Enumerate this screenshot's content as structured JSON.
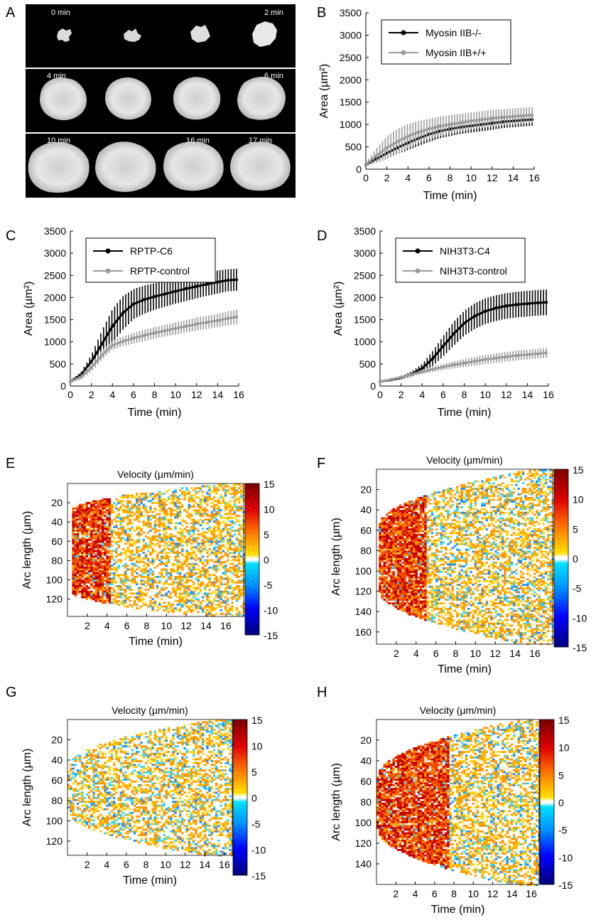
{
  "panels": {
    "A": {
      "letter": "A",
      "time_labels": [
        "0 min",
        "2 min",
        "4 min",
        "6 min",
        "10 min",
        "16 min",
        "17 min"
      ]
    },
    "B": {
      "letter": "B"
    },
    "C": {
      "letter": "C"
    },
    "D": {
      "letter": "D"
    },
    "E": {
      "letter": "E"
    },
    "F": {
      "letter": "F"
    },
    "G": {
      "letter": "G"
    },
    "H": {
      "letter": "H"
    }
  },
  "colors": {
    "black_series": "#000000",
    "gray_series": "#9a9a9a"
  },
  "chart_data": [
    {
      "id": "B",
      "type": "line",
      "xlabel": "Time (min)",
      "ylabel": "Area (µm²)",
      "xlim": [
        0,
        16
      ],
      "ylim": [
        0,
        3500
      ],
      "xticks": [
        "0",
        "2",
        "4",
        "6",
        "8",
        "10",
        "12",
        "14",
        "16"
      ],
      "yticks": [
        "0",
        "500",
        "1000",
        "1500",
        "2000",
        "2500",
        "3000",
        "3500"
      ],
      "legend_position": "top-left",
      "series": [
        {
          "name": "Myosin IIB-/-",
          "color": "black",
          "x": [
            0,
            1,
            2,
            3,
            4,
            5,
            6,
            7,
            8,
            9,
            10,
            11,
            12,
            13,
            14,
            15,
            15.8
          ],
          "y": [
            100,
            230,
            360,
            480,
            590,
            690,
            780,
            850,
            900,
            940,
            970,
            1000,
            1030,
            1060,
            1080,
            1100,
            1110
          ],
          "err": [
            30,
            70,
            110,
            140,
            160,
            170,
            170,
            160,
            160,
            150,
            150,
            150,
            150,
            140,
            140,
            140,
            140
          ]
        },
        {
          "name": "Myosin IIB+/+",
          "color": "gray",
          "x": [
            0,
            1,
            2,
            3,
            4,
            5,
            6,
            7,
            8,
            9,
            10,
            11,
            12,
            13,
            14,
            15,
            15.8
          ],
          "y": [
            110,
            300,
            480,
            620,
            740,
            830,
            900,
            960,
            1000,
            1040,
            1080,
            1110,
            1140,
            1160,
            1180,
            1200,
            1210
          ],
          "err": [
            40,
            160,
            260,
            280,
            270,
            250,
            230,
            220,
            210,
            200,
            190,
            190,
            190,
            180,
            180,
            180,
            180
          ]
        }
      ]
    },
    {
      "id": "C",
      "type": "line",
      "xlabel": "Time (min)",
      "ylabel": "Area (µm²)",
      "xlim": [
        0,
        16
      ],
      "ylim": [
        0,
        3500
      ],
      "xticks": [
        "0",
        "2",
        "4",
        "6",
        "8",
        "10",
        "12",
        "14",
        "16"
      ],
      "yticks": [
        "0",
        "500",
        "1000",
        "1500",
        "2000",
        "2500",
        "3000",
        "3500"
      ],
      "legend_position": "top-left",
      "series": [
        {
          "name": "RPTP-C6",
          "color": "black",
          "x": [
            0,
            1,
            2,
            3,
            4,
            5,
            6,
            7,
            8,
            9,
            10,
            11,
            12,
            13,
            14,
            15,
            15.8
          ],
          "y": [
            100,
            250,
            550,
            950,
            1350,
            1650,
            1850,
            1950,
            2020,
            2080,
            2140,
            2200,
            2250,
            2300,
            2350,
            2390,
            2400
          ],
          "err": [
            30,
            60,
            150,
            300,
            380,
            380,
            340,
            320,
            300,
            290,
            280,
            280,
            270,
            260,
            260,
            250,
            250
          ]
        },
        {
          "name": "RPTP-control",
          "color": "gray",
          "x": [
            0,
            1,
            2,
            3,
            4,
            5,
            6,
            7,
            8,
            9,
            10,
            11,
            12,
            13,
            14,
            15,
            15.8
          ],
          "y": [
            100,
            200,
            420,
            700,
            920,
            1010,
            1080,
            1140,
            1200,
            1250,
            1300,
            1350,
            1400,
            1440,
            1480,
            1530,
            1560
          ],
          "err": [
            30,
            60,
            100,
            110,
            100,
            110,
            120,
            130,
            130,
            130,
            140,
            140,
            150,
            150,
            150,
            160,
            160
          ]
        }
      ]
    },
    {
      "id": "D",
      "type": "line",
      "xlabel": "Time (min)",
      "ylabel": "Area (µm²)",
      "xlim": [
        0,
        16
      ],
      "ylim": [
        0,
        3500
      ],
      "xticks": [
        "0",
        "2",
        "4",
        "6",
        "8",
        "10",
        "12",
        "14",
        "16"
      ],
      "yticks": [
        "0",
        "500",
        "1000",
        "1500",
        "2000",
        "2500",
        "3000",
        "3500"
      ],
      "legend_position": "top-left",
      "series": [
        {
          "name": "NIH3T3-C4",
          "color": "black",
          "x": [
            0,
            1,
            2,
            3,
            4,
            5,
            6,
            7,
            8,
            9,
            10,
            11,
            12,
            13,
            14,
            15,
            15.8
          ],
          "y": [
            100,
            140,
            190,
            270,
            400,
            620,
            900,
            1180,
            1420,
            1580,
            1690,
            1760,
            1810,
            1840,
            1860,
            1880,
            1890
          ],
          "err": [
            20,
            30,
            40,
            60,
            100,
            170,
            230,
            270,
            280,
            290,
            290,
            290,
            290,
            290,
            290,
            290,
            290
          ]
        },
        {
          "name": "NIH3T3-control",
          "color": "gray",
          "x": [
            0,
            1,
            2,
            3,
            4,
            5,
            6,
            7,
            8,
            9,
            10,
            11,
            12,
            13,
            14,
            15,
            15.8
          ],
          "y": [
            100,
            150,
            200,
            260,
            320,
            380,
            430,
            480,
            520,
            560,
            600,
            630,
            660,
            690,
            710,
            730,
            750
          ],
          "err": [
            15,
            25,
            30,
            40,
            50,
            60,
            70,
            80,
            90,
            100,
            100,
            110,
            110,
            110,
            110,
            110,
            110
          ]
        }
      ]
    },
    {
      "id": "E",
      "type": "heatmap",
      "title": "Velocity (µm/min)",
      "xlabel": "Time (min)",
      "ylabel": "Arc length (µm)",
      "xticks": [
        "2",
        "4",
        "6",
        "8",
        "10",
        "12",
        "14",
        "16"
      ],
      "yticks": [
        "20",
        "40",
        "60",
        "80",
        "100",
        "120"
      ],
      "xlim": [
        0,
        17.8
      ],
      "ylim": [
        0,
        138
      ],
      "colorbar": {
        "ticks": [
          "15",
          "10",
          "5",
          "0",
          "-5",
          "-10",
          "-15"
        ],
        "range": [
          -15,
          15
        ]
      },
      "region_profile": {
        "start_halfwidth": 40,
        "max_halfwidth": 69,
        "center": 69,
        "active_start": 0.3,
        "hot_until": 4.2
      }
    },
    {
      "id": "F",
      "type": "heatmap",
      "title": "Velocity (µm/min)",
      "xlabel": "Time (min)",
      "ylabel": "Arc length (µm)",
      "xticks": [
        "2",
        "4",
        "6",
        "8",
        "10",
        "12",
        "14",
        "16"
      ],
      "yticks": [
        "20",
        "40",
        "60",
        "80",
        "100",
        "120",
        "140",
        "160"
      ],
      "xlim": [
        0,
        17.8
      ],
      "ylim": [
        0,
        172
      ],
      "colorbar": {
        "ticks": [
          "15",
          "10",
          "5",
          "0",
          "-5",
          "-10",
          "-15"
        ],
        "range": [
          -15,
          15
        ]
      },
      "region_profile": {
        "start_halfwidth": 30,
        "max_halfwidth": 86,
        "center": 86,
        "active_start": 0.1,
        "hot_until": 5.0
      }
    },
    {
      "id": "G",
      "type": "heatmap",
      "title": "Velocity (µm/min)",
      "xlabel": "Time (min)",
      "ylabel": "Arc length (µm)",
      "xticks": [
        "2",
        "4",
        "6",
        "8",
        "10",
        "12",
        "14",
        "16"
      ],
      "yticks": [
        "20",
        "40",
        "60",
        "80",
        "100",
        "120"
      ],
      "xlim": [
        0,
        16.8
      ],
      "ylim": [
        0,
        134
      ],
      "colorbar": {
        "ticks": [
          "15",
          "10",
          "5",
          "0",
          "-5",
          "-10",
          "-15"
        ],
        "range": [
          -15,
          15
        ]
      },
      "region_profile": {
        "start_halfwidth": 22,
        "max_halfwidth": 67,
        "center": 67,
        "active_start": 0.0,
        "hot_until": 0
      }
    },
    {
      "id": "H",
      "type": "heatmap",
      "title": "Velocity (µm/min)",
      "xlabel": "Time (min)",
      "ylabel": "Arc length (µm)",
      "xticks": [
        "2",
        "4",
        "6",
        "8",
        "10",
        "12",
        "14",
        "16"
      ],
      "yticks": [
        "20",
        "40",
        "60",
        "80",
        "100",
        "120",
        "140"
      ],
      "xlim": [
        0,
        16.8
      ],
      "ylim": [
        0,
        160
      ],
      "colorbar": {
        "ticks": [
          "15",
          "10",
          "5",
          "0",
          "-5",
          "-10",
          "-15"
        ],
        "range": [
          -15,
          15
        ]
      },
      "region_profile": {
        "start_halfwidth": 25,
        "max_halfwidth": 80,
        "center": 80,
        "active_start": 0.0,
        "hot_until": 7.5
      }
    }
  ]
}
